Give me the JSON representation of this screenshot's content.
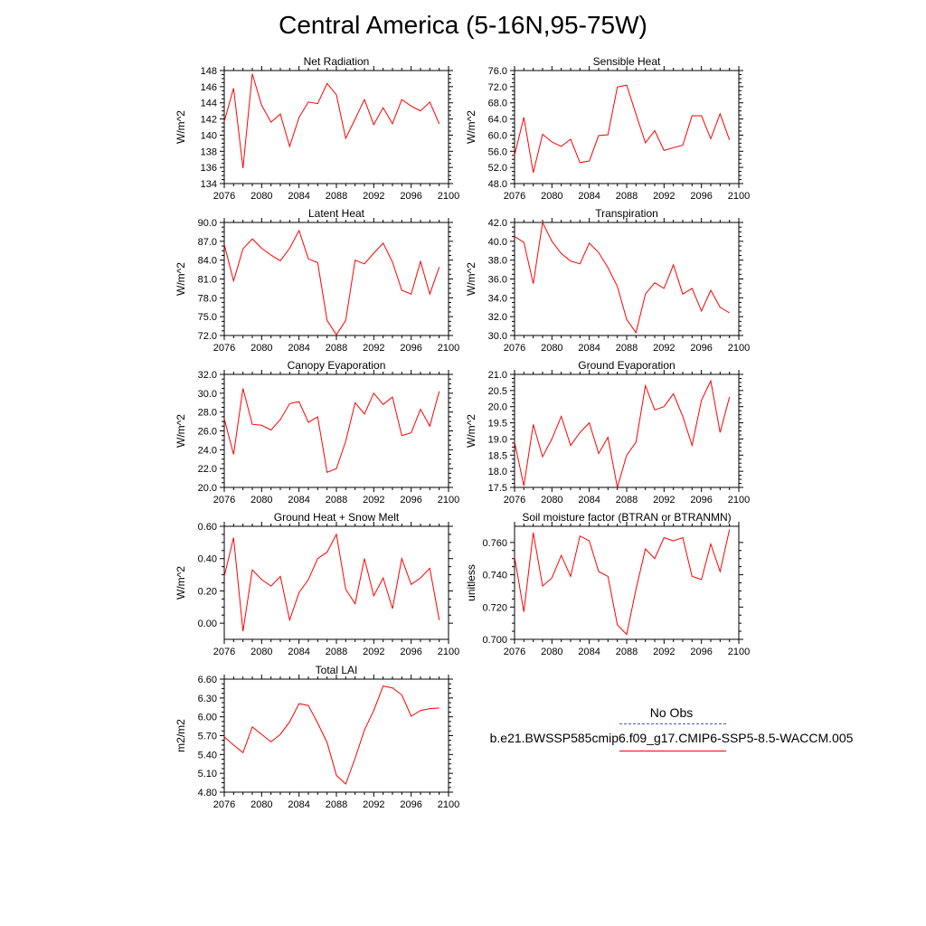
{
  "title": "Central America (5-16N,95-75W)",
  "colors": {
    "model_line": "#ff0000",
    "obs_line": "#4a5fa8",
    "axis": "#000000"
  },
  "legend": {
    "obs_label": "No Obs",
    "model_label": "b.e21.BWSSP585cmip6.f09_g17.CMIP6-SSP5-8.5-WACCM.005"
  },
  "chart_data": [
    {
      "type": "line",
      "title": "Net Radiation",
      "xlabel": "",
      "ylabel": "W/m^2",
      "xlim": [
        2076,
        2100
      ],
      "ylim": [
        134,
        148
      ],
      "xticks": [
        "2076",
        "2080",
        "2084",
        "2088",
        "2092",
        "2096",
        "2100"
      ],
      "yticks": [
        "134",
        "136",
        "138",
        "140",
        "142",
        "144",
        "146",
        "148"
      ],
      "x": [
        2076,
        2077,
        2078,
        2079,
        2080,
        2081,
        2082,
        2083,
        2084,
        2085,
        2086,
        2087,
        2088,
        2089,
        2090,
        2091,
        2092,
        2093,
        2094,
        2095,
        2096,
        2097,
        2098,
        2099
      ],
      "y": [
        141.7,
        145.8,
        135.9,
        147.6,
        143.7,
        141.6,
        142.6,
        138.6,
        142.2,
        144.1,
        143.9,
        146.4,
        145.0,
        139.6,
        142.0,
        144.4,
        141.3,
        143.4,
        141.4,
        144.4,
        143.6,
        143.0,
        144.1,
        141.4
      ]
    },
    {
      "type": "line",
      "title": "Sensible Heat",
      "xlabel": "",
      "ylabel": "W/m^2",
      "xlim": [
        2076,
        2100
      ],
      "ylim": [
        48,
        76
      ],
      "xticks": [
        "2076",
        "2080",
        "2084",
        "2088",
        "2092",
        "2096",
        "2100"
      ],
      "yticks": [
        "48.0",
        "52.0",
        "56.0",
        "60.0",
        "64.0",
        "68.0",
        "72.0",
        "76.0"
      ],
      "x": [
        2076,
        2077,
        2078,
        2079,
        2080,
        2081,
        2082,
        2083,
        2084,
        2085,
        2086,
        2087,
        2088,
        2089,
        2090,
        2091,
        2092,
        2093,
        2094,
        2095,
        2096,
        2097,
        2098,
        2099
      ],
      "y": [
        55.0,
        64.4,
        50.7,
        60.2,
        58.3,
        57.2,
        59.0,
        53.2,
        53.6,
        59.9,
        60.1,
        71.9,
        72.4,
        65.2,
        58.1,
        61.1,
        56.2,
        56.9,
        57.5,
        64.8,
        64.8,
        59.1,
        65.3,
        58.8
      ]
    },
    {
      "type": "line",
      "title": "Latent Heat",
      "xlabel": "",
      "ylabel": "W/m^2",
      "xlim": [
        2076,
        2100
      ],
      "ylim": [
        72,
        90
      ],
      "xticks": [
        "2076",
        "2080",
        "2084",
        "2088",
        "2092",
        "2096",
        "2100"
      ],
      "yticks": [
        "72.0",
        "75.0",
        "78.0",
        "81.0",
        "84.0",
        "87.0",
        "90.0"
      ],
      "x": [
        2076,
        2077,
        2078,
        2079,
        2080,
        2081,
        2082,
        2083,
        2084,
        2085,
        2086,
        2087,
        2088,
        2089,
        2090,
        2091,
        2092,
        2093,
        2094,
        2095,
        2096,
        2097,
        2098,
        2099
      ],
      "y": [
        86.5,
        80.7,
        85.8,
        87.4,
        85.9,
        84.8,
        83.9,
        85.9,
        88.7,
        84.2,
        83.6,
        74.4,
        72.1,
        74.4,
        84.0,
        83.4,
        85.1,
        86.7,
        83.7,
        79.2,
        78.6,
        83.8,
        78.6,
        82.9
      ]
    },
    {
      "type": "line",
      "title": "Transpiration",
      "xlabel": "",
      "ylabel": "W/m^2",
      "xlim": [
        2076,
        2100
      ],
      "ylim": [
        30,
        42
      ],
      "xticks": [
        "2076",
        "2080",
        "2084",
        "2088",
        "2092",
        "2096",
        "2100"
      ],
      "yticks": [
        "30.0",
        "32.0",
        "34.0",
        "36.0",
        "38.0",
        "40.0",
        "42.0"
      ],
      "x": [
        2076,
        2077,
        2078,
        2079,
        2080,
        2081,
        2082,
        2083,
        2084,
        2085,
        2086,
        2087,
        2088,
        2089,
        2090,
        2091,
        2092,
        2093,
        2094,
        2095,
        2096,
        2097,
        2098,
        2099
      ],
      "y": [
        40.5,
        39.9,
        35.5,
        42.0,
        40.0,
        38.7,
        37.9,
        37.6,
        39.8,
        38.8,
        37.2,
        35.2,
        31.7,
        30.3,
        34.4,
        35.6,
        35.0,
        37.5,
        34.4,
        35.0,
        32.6,
        34.8,
        33.0,
        32.4
      ]
    },
    {
      "type": "line",
      "title": "Canopy Evaporation",
      "xlabel": "",
      "ylabel": "W/m^2",
      "xlim": [
        2076,
        2100
      ],
      "ylim": [
        20,
        32
      ],
      "xticks": [
        "2076",
        "2080",
        "2084",
        "2088",
        "2092",
        "2096",
        "2100"
      ],
      "yticks": [
        "20.0",
        "22.0",
        "24.0",
        "26.0",
        "28.0",
        "30.0",
        "32.0"
      ],
      "x": [
        2076,
        2077,
        2078,
        2079,
        2080,
        2081,
        2082,
        2083,
        2084,
        2085,
        2086,
        2087,
        2088,
        2089,
        2090,
        2091,
        2092,
        2093,
        2094,
        2095,
        2096,
        2097,
        2098,
        2099
      ],
      "y": [
        27.3,
        23.5,
        30.5,
        26.7,
        26.6,
        26.1,
        27.2,
        28.9,
        29.1,
        26.9,
        27.5,
        21.6,
        22.0,
        24.9,
        29.0,
        27.8,
        30.0,
        28.8,
        29.6,
        25.5,
        25.8,
        28.3,
        26.5,
        30.2
      ]
    },
    {
      "type": "line",
      "title": "Ground Evaporation",
      "xlabel": "",
      "ylabel": "W/m^2",
      "xlim": [
        2076,
        2100
      ],
      "ylim": [
        17.5,
        21.0
      ],
      "xticks": [
        "2076",
        "2080",
        "2084",
        "2088",
        "2092",
        "2096",
        "2100"
      ],
      "yticks": [
        "17.5",
        "18.0",
        "18.5",
        "19.0",
        "19.5",
        "20.0",
        "20.5",
        "21.0"
      ],
      "x": [
        2076,
        2077,
        2078,
        2079,
        2080,
        2081,
        2082,
        2083,
        2084,
        2085,
        2086,
        2087,
        2088,
        2089,
        2090,
        2091,
        2092,
        2093,
        2094,
        2095,
        2096,
        2097,
        2098,
        2099
      ],
      "y": [
        18.9,
        17.55,
        19.45,
        18.45,
        19.0,
        19.7,
        18.8,
        19.2,
        19.5,
        18.55,
        19.05,
        17.5,
        18.5,
        18.9,
        20.65,
        19.9,
        20.0,
        20.4,
        19.7,
        18.8,
        20.2,
        20.8,
        19.2,
        20.3
      ]
    },
    {
      "type": "line",
      "title": "Ground Heat + Snow Melt",
      "xlabel": "",
      "ylabel": "W/m^2",
      "xlim": [
        2076,
        2100
      ],
      "ylim": [
        -0.1,
        0.6
      ],
      "xticks": [
        "2076",
        "2080",
        "2084",
        "2088",
        "2092",
        "2096",
        "2100"
      ],
      "yticks": [
        "0.00",
        "0.20",
        "0.40",
        "0.60"
      ],
      "ytick_values": [
        0.0,
        0.2,
        0.4,
        0.6
      ],
      "x": [
        2076,
        2077,
        2078,
        2079,
        2080,
        2081,
        2082,
        2083,
        2084,
        2085,
        2086,
        2087,
        2088,
        2089,
        2090,
        2091,
        2092,
        2093,
        2094,
        2095,
        2096,
        2097,
        2098,
        2099
      ],
      "y": [
        0.29,
        0.53,
        -0.05,
        0.33,
        0.27,
        0.23,
        0.29,
        0.02,
        0.19,
        0.27,
        0.4,
        0.44,
        0.55,
        0.21,
        0.12,
        0.4,
        0.17,
        0.28,
        0.09,
        0.4,
        0.24,
        0.28,
        0.34,
        0.02
      ]
    },
    {
      "type": "line",
      "title": "Soil moisture factor (BTRAN or BTRANMN)",
      "xlabel": "",
      "ylabel": "unitless",
      "xlim": [
        2076,
        2100
      ],
      "ylim": [
        0.7,
        0.77
      ],
      "xticks": [
        "2076",
        "2080",
        "2084",
        "2088",
        "2092",
        "2096",
        "2100"
      ],
      "yticks": [
        "0.700",
        "0.720",
        "0.740",
        "0.760"
      ],
      "ytick_values": [
        0.7,
        0.72,
        0.74,
        0.76
      ],
      "x": [
        2076,
        2077,
        2078,
        2079,
        2080,
        2081,
        2082,
        2083,
        2084,
        2085,
        2086,
        2087,
        2088,
        2089,
        2090,
        2091,
        2092,
        2093,
        2094,
        2095,
        2096,
        2097,
        2098,
        2099
      ],
      "y": [
        0.751,
        0.717,
        0.766,
        0.733,
        0.738,
        0.752,
        0.739,
        0.764,
        0.761,
        0.742,
        0.739,
        0.709,
        0.703,
        0.731,
        0.756,
        0.75,
        0.763,
        0.761,
        0.763,
        0.739,
        0.737,
        0.759,
        0.742,
        0.768
      ]
    },
    {
      "type": "line",
      "title": "Total LAI",
      "xlabel": "",
      "ylabel": "m2/m2",
      "xlim": [
        2076,
        2100
      ],
      "ylim": [
        4.8,
        6.6
      ],
      "xticks": [
        "2076",
        "2080",
        "2084",
        "2088",
        "2092",
        "2096",
        "2100"
      ],
      "yticks": [
        "4.80",
        "5.10",
        "5.40",
        "5.70",
        "6.00",
        "6.30",
        "6.60"
      ],
      "x": [
        2076,
        2077,
        2078,
        2079,
        2080,
        2081,
        2082,
        2083,
        2084,
        2085,
        2086,
        2087,
        2088,
        2089,
        2090,
        2091,
        2092,
        2093,
        2094,
        2095,
        2096,
        2097,
        2098,
        2099
      ],
      "y": [
        5.68,
        5.55,
        5.43,
        5.84,
        5.72,
        5.6,
        5.72,
        5.92,
        6.21,
        6.18,
        5.9,
        5.59,
        5.07,
        4.93,
        5.34,
        5.79,
        6.1,
        6.49,
        6.46,
        6.35,
        6.01,
        6.1,
        6.13,
        6.14
      ]
    }
  ]
}
